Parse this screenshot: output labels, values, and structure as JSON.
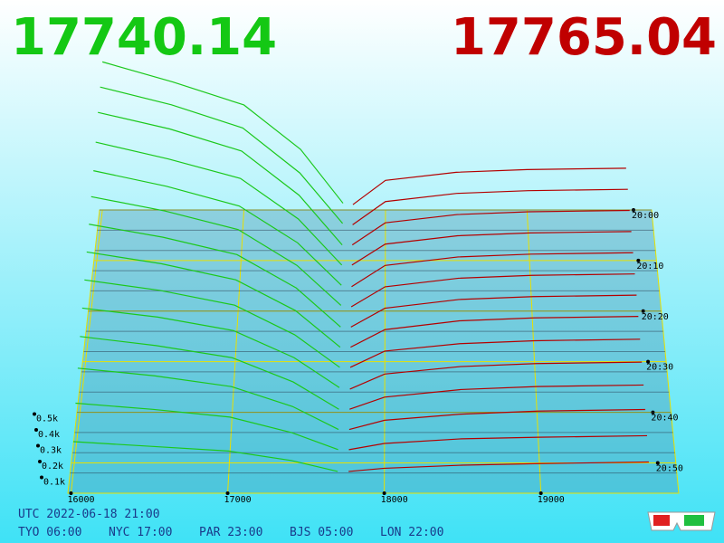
{
  "chart_data": {
    "type": "depth3d",
    "best_bid": 17740.14,
    "best_ask": 17765.04,
    "bid_color": "#1cc81c",
    "ask_color": "#b40000",
    "xlim": [
      15980,
      19880
    ],
    "xticks": [
      16000,
      17000,
      18000,
      19000
    ],
    "zlim": [
      0,
      56
    ],
    "zticks": [
      {
        "value": 0,
        "label": "20:00"
      },
      {
        "value": 10,
        "label": "20:10"
      },
      {
        "value": 20,
        "label": "20:20"
      },
      {
        "value": 30,
        "label": "20:30"
      },
      {
        "value": 40,
        "label": "20:40"
      },
      {
        "value": 50,
        "label": "20:50"
      }
    ],
    "ylim": [
      0,
      1
    ],
    "yticks": [
      {
        "value": 0.1,
        "label": "0.1k"
      },
      {
        "value": 0.2,
        "label": "0.2k"
      },
      {
        "value": 0.3,
        "label": "0.3k"
      },
      {
        "value": 0.4,
        "label": "0.4k"
      },
      {
        "value": 0.5,
        "label": "0.5k"
      }
    ],
    "grid": true,
    "bid_prices": [
      16000,
      16500,
      17000,
      17400,
      17700
    ],
    "ask_prices": [
      17770,
      18000,
      18500,
      19000,
      19700
    ],
    "snapshots": [
      {
        "t": 0,
        "bid_depth": [
          1.1,
          0.95,
          0.78,
          0.45,
          0.05
        ],
        "ask_depth": [
          0.04,
          0.22,
          0.28,
          0.3,
          0.31
        ]
      },
      {
        "t": 4,
        "bid_depth": [
          1.05,
          0.92,
          0.75,
          0.42,
          0.05
        ],
        "ask_depth": [
          0.04,
          0.21,
          0.27,
          0.29,
          0.3
        ]
      },
      {
        "t": 8,
        "bid_depth": [
          1.0,
          0.88,
          0.72,
          0.4,
          0.04
        ],
        "ask_depth": [
          0.04,
          0.2,
          0.26,
          0.28,
          0.29
        ]
      },
      {
        "t": 12,
        "bid_depth": [
          0.92,
          0.8,
          0.66,
          0.37,
          0.04
        ],
        "ask_depth": [
          0.04,
          0.19,
          0.25,
          0.27,
          0.28
        ]
      },
      {
        "t": 16,
        "bid_depth": [
          0.85,
          0.74,
          0.6,
          0.34,
          0.04
        ],
        "ask_depth": [
          0.03,
          0.18,
          0.24,
          0.26,
          0.27
        ]
      },
      {
        "t": 20,
        "bid_depth": [
          0.8,
          0.7,
          0.57,
          0.32,
          0.04
        ],
        "ask_depth": [
          0.03,
          0.17,
          0.23,
          0.25,
          0.26
        ]
      },
      {
        "t": 24,
        "bid_depth": [
          0.74,
          0.65,
          0.53,
          0.3,
          0.03
        ],
        "ask_depth": [
          0.03,
          0.16,
          0.22,
          0.24,
          0.25
        ]
      },
      {
        "t": 28,
        "bid_depth": [
          0.68,
          0.6,
          0.49,
          0.28,
          0.03
        ],
        "ask_depth": [
          0.03,
          0.15,
          0.21,
          0.23,
          0.24
        ]
      },
      {
        "t": 32,
        "bid_depth": [
          0.62,
          0.55,
          0.45,
          0.25,
          0.03
        ],
        "ask_depth": [
          0.03,
          0.14,
          0.19,
          0.21,
          0.22
        ]
      },
      {
        "t": 36,
        "bid_depth": [
          0.56,
          0.5,
          0.41,
          0.23,
          0.03
        ],
        "ask_depth": [
          0.02,
          0.12,
          0.17,
          0.19,
          0.2
        ]
      },
      {
        "t": 40,
        "bid_depth": [
          0.5,
          0.44,
          0.36,
          0.2,
          0.02
        ],
        "ask_depth": [
          0.02,
          0.1,
          0.15,
          0.17,
          0.18
        ]
      },
      {
        "t": 44,
        "bid_depth": [
          0.42,
          0.37,
          0.3,
          0.17,
          0.02
        ],
        "ask_depth": [
          0.02,
          0.08,
          0.12,
          0.14,
          0.15
        ]
      },
      {
        "t": 48,
        "bid_depth": [
          0.32,
          0.28,
          0.23,
          0.13,
          0.02
        ],
        "ask_depth": [
          0.02,
          0.06,
          0.09,
          0.1,
          0.11
        ]
      },
      {
        "t": 52,
        "bid_depth": [
          0.2,
          0.17,
          0.14,
          0.08,
          0.01
        ],
        "ask_depth": [
          0.01,
          0.03,
          0.05,
          0.06,
          0.07
        ]
      }
    ]
  },
  "clock": {
    "utc": "UTC 2022-06-18 21:00",
    "zones": [
      "TYO 06:00",
      "NYC 17:00",
      "PAR 23:00",
      "BJS 05:00",
      "LON 22:00"
    ]
  }
}
